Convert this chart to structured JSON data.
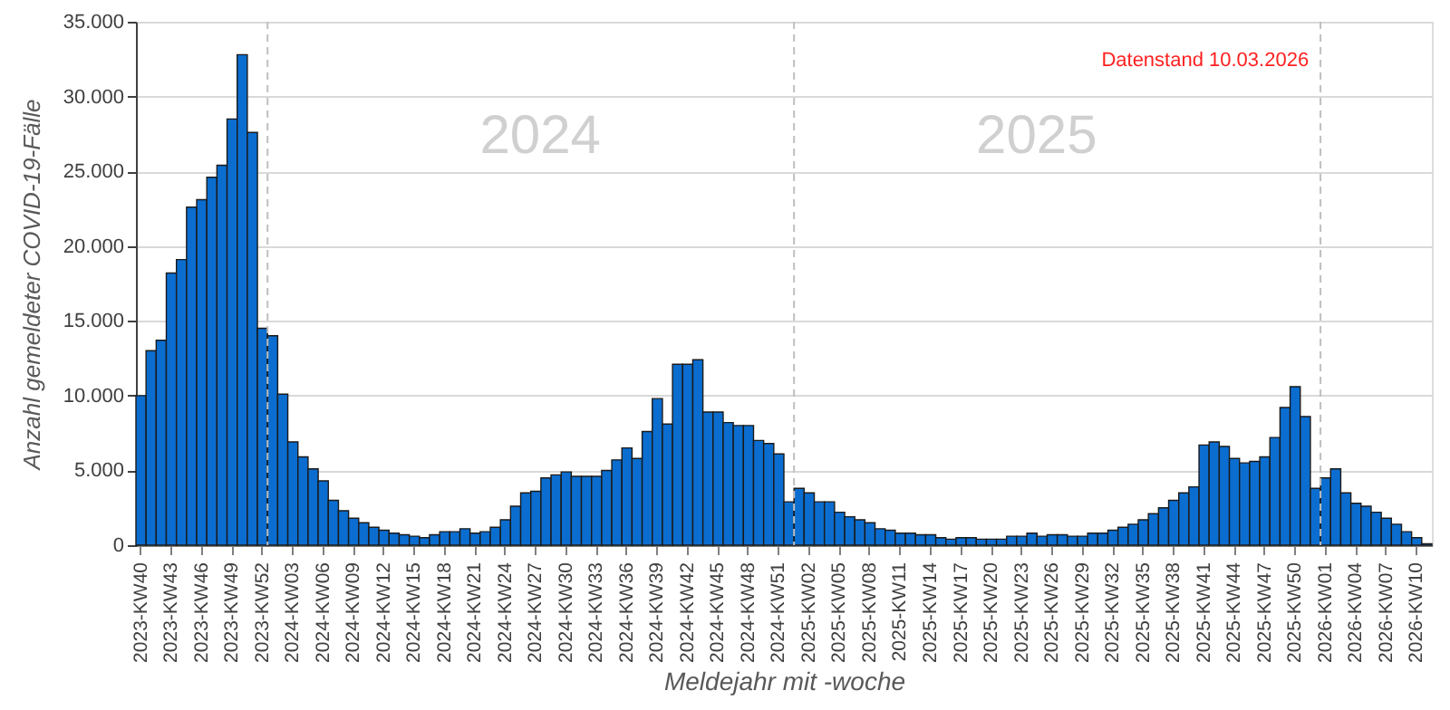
{
  "chart_data": {
    "type": "bar",
    "xlabel": "Meldejahr mit -woche",
    "ylabel": "Anzahl gemeldeter COVID-19-Fälle",
    "categories": [
      "2023-KW40",
      null,
      null,
      "2023-KW43",
      null,
      null,
      "2023-KW46",
      null,
      null,
      "2023-KW49",
      null,
      null,
      "2023-KW52",
      null,
      null,
      "2024-KW03",
      null,
      null,
      "2024-KW06",
      null,
      null,
      "2024-KW09",
      null,
      null,
      "2024-KW12",
      null,
      null,
      "2024-KW15",
      null,
      null,
      "2024-KW18",
      null,
      null,
      "2024-KW21",
      null,
      null,
      "2024-KW24",
      null,
      null,
      "2024-KW27",
      null,
      null,
      "2024-KW30",
      null,
      null,
      "2024-KW33",
      null,
      null,
      "2024-KW36",
      null,
      null,
      "2024-KW39",
      null,
      null,
      "2024-KW42",
      null,
      null,
      "2024-KW45",
      null,
      null,
      "2024-KW48",
      null,
      null,
      "2024-KW51",
      null,
      null,
      "2025-KW02",
      null,
      null,
      "2025-KW05",
      null,
      null,
      "2025-KW08",
      null,
      null,
      "2025-KW11",
      null,
      null,
      "2025-KW14",
      null,
      null,
      "2025-KW17",
      null,
      null,
      "2025-KW20",
      null,
      null,
      "2025-KW23",
      null,
      null,
      "2025-KW26",
      null,
      null,
      "2025-KW29",
      null,
      null,
      "2025-KW32",
      null,
      null,
      "2025-KW35",
      null,
      null,
      "2025-KW38",
      null,
      null,
      "2025-KW41",
      null,
      null,
      "2025-KW44",
      null,
      null,
      "2025-KW47",
      null,
      null,
      "2025-KW50",
      null,
      null,
      "2026-KW01",
      null,
      null,
      "2026-KW04",
      null,
      null,
      "2026-KW07",
      null,
      null,
      "2026-KW10",
      null
    ],
    "values": [
      10000,
      13000,
      13700,
      18200,
      19100,
      22600,
      23100,
      24600,
      25400,
      28500,
      32800,
      27600,
      14500,
      14000,
      10100,
      6900,
      5900,
      5100,
      4300,
      3000,
      2300,
      1800,
      1500,
      1200,
      1000,
      800,
      700,
      600,
      500,
      700,
      900,
      900,
      1100,
      800,
      900,
      1200,
      1700,
      2600,
      3500,
      3600,
      4500,
      4700,
      4900,
      4600,
      4600,
      4600,
      5000,
      5700,
      6500,
      5800,
      7600,
      9800,
      8100,
      12100,
      12100,
      12400,
      8900,
      8900,
      8200,
      8000,
      8000,
      7000,
      6800,
      6100,
      2900,
      3800,
      3500,
      2900,
      2900,
      2200,
      1900,
      1700,
      1500,
      1100,
      1000,
      800,
      800,
      700,
      700,
      500,
      400,
      500,
      500,
      400,
      400,
      400,
      600,
      600,
      800,
      600,
      700,
      700,
      600,
      600,
      800,
      800,
      1000,
      1200,
      1400,
      1700,
      2100,
      2500,
      3000,
      3500,
      3900,
      6700,
      6900,
      6600,
      5800,
      5500,
      5600,
      5900,
      7200,
      9200,
      10600,
      8600,
      3800,
      4500,
      5100,
      3500,
      2800,
      2600,
      2200,
      1800,
      1400,
      900,
      500,
      100
    ],
    "color": "#0b6dcf",
    "ylim": [
      0,
      35000
    ],
    "yticks": [
      0,
      {
        "value": 5000,
        "label": "5.000"
      },
      {
        "value": 10000,
        "label": "10.000"
      },
      {
        "value": 15000,
        "label": "15.000"
      },
      {
        "value": 20000,
        "label": "20.000"
      },
      {
        "value": 25000,
        "label": "25.000"
      },
      {
        "value": 30000,
        "label": "30.000"
      },
      {
        "value": 35000,
        "label": "35.000"
      }
    ],
    "grid": "y",
    "annotations": [
      "2024",
      "2025",
      "Datenstand 10.03.2026"
    ]
  }
}
